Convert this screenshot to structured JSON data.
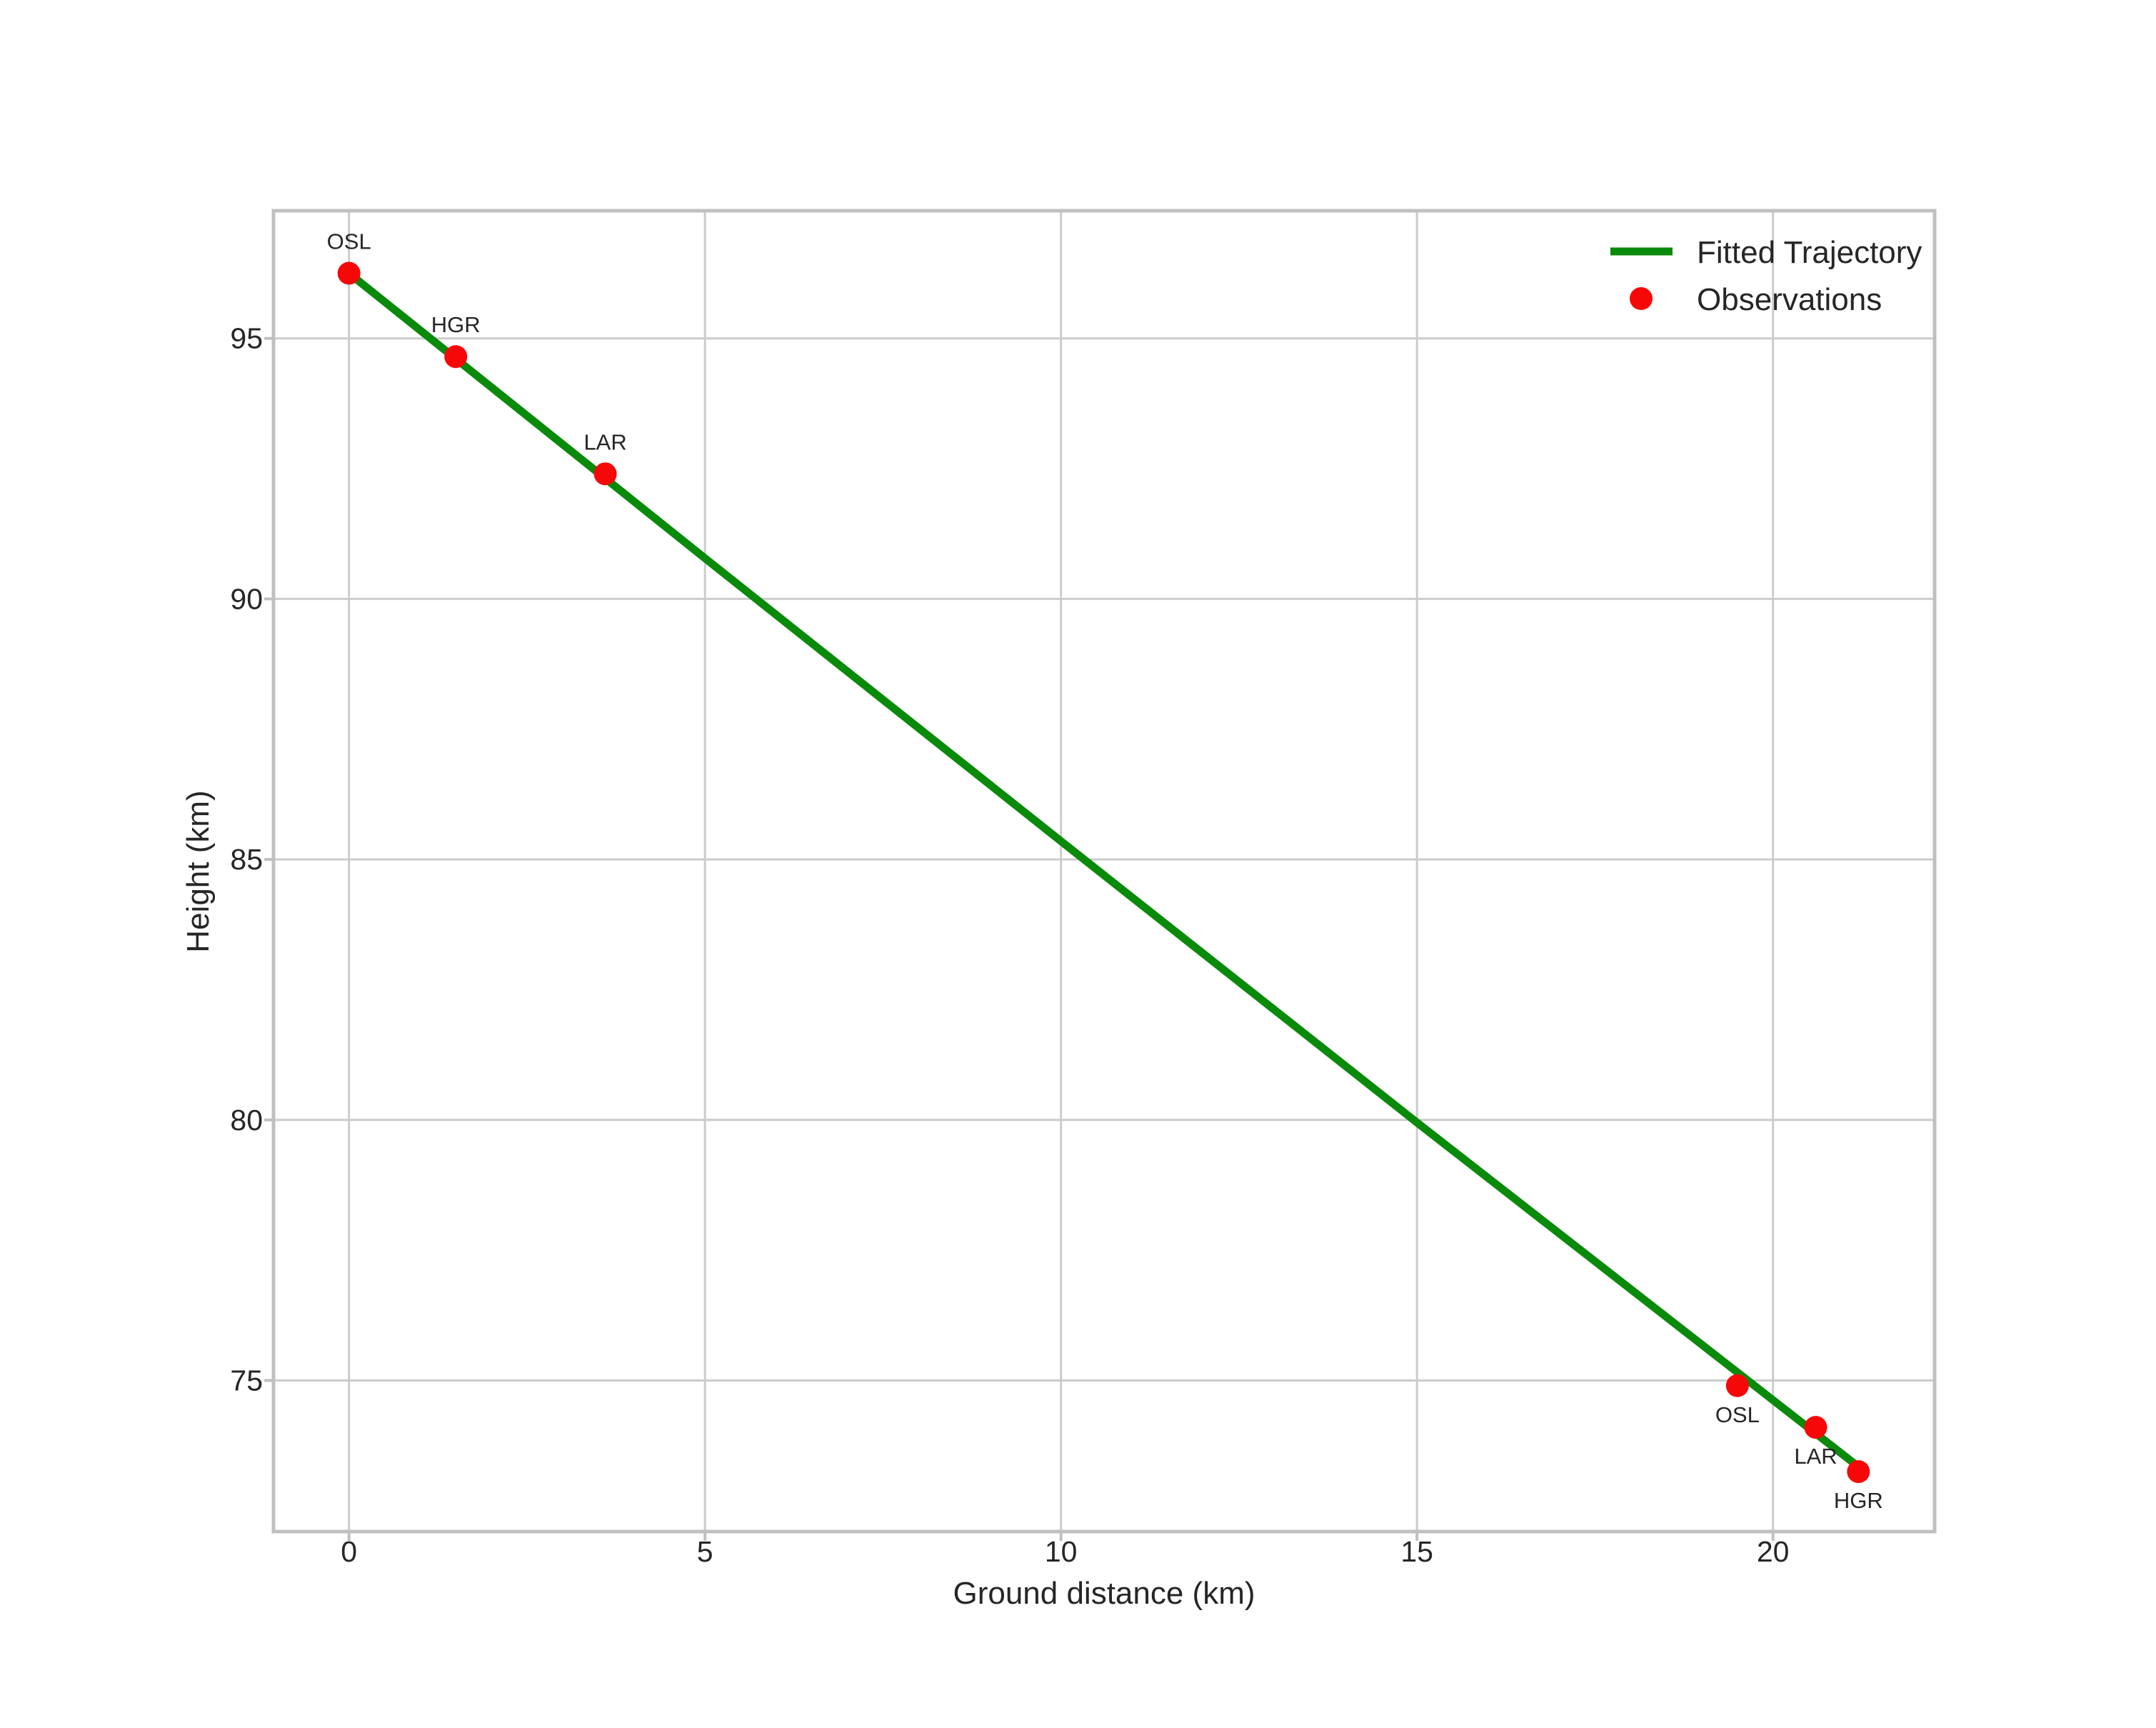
{
  "chart_data": {
    "type": "scatter",
    "title": "",
    "xlabel": "Ground distance (km)",
    "ylabel": "Height (km)",
    "xlim": [
      -1.06,
      22.27
    ],
    "ylim": [
      72.1,
      97.45
    ],
    "xticks": [
      0,
      5,
      10,
      15,
      20
    ],
    "yticks": [
      75,
      80,
      85,
      90,
      95
    ],
    "grid": true,
    "legend_position": "upper right",
    "series": [
      {
        "name": "Fitted Trajectory",
        "type": "line",
        "color": "#0a8a0a",
        "points": [
          [
            0,
            96.25
          ],
          [
            5,
            90.78
          ],
          [
            10,
            85.35
          ],
          [
            15,
            79.95
          ],
          [
            21.27,
            73.27
          ]
        ]
      },
      {
        "name": "Observations",
        "type": "scatter",
        "color": "#f70808",
        "points": [
          {
            "station": "OSL",
            "x": 0.0,
            "y": 96.25,
            "label_side": "above"
          },
          {
            "station": "HGR",
            "x": 1.5,
            "y": 94.65,
            "label_side": "above"
          },
          {
            "station": "LAR",
            "x": 3.6,
            "y": 92.4,
            "label_side": "above"
          },
          {
            "station": "OSL",
            "x": 19.5,
            "y": 74.9,
            "label_side": "below"
          },
          {
            "station": "LAR",
            "x": 20.6,
            "y": 74.1,
            "label_side": "below"
          },
          {
            "station": "HGR",
            "x": 21.2,
            "y": 73.25,
            "label_side": "below"
          }
        ]
      }
    ],
    "legend": {
      "entries": [
        {
          "label": "Fitted Trajectory",
          "sample": "line"
        },
        {
          "label": "Observations",
          "sample": "marker"
        }
      ]
    }
  },
  "colors": {
    "trajectory_green": "#0a8a0a",
    "observation_red": "#f70808",
    "gridline": "#cccccc",
    "plot_border": "#c0c0c0",
    "text": "#262626",
    "background": "#ffffff"
  }
}
